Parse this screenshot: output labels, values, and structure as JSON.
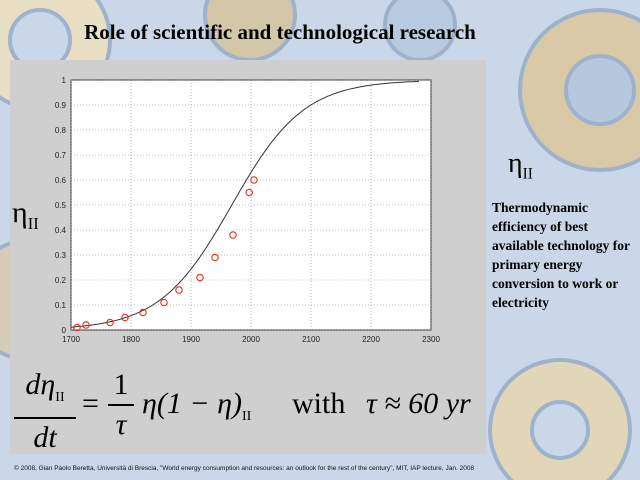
{
  "slide": {
    "title": "Role of scientific and technological research",
    "eta_symbol": "η",
    "eta_subscript": "II",
    "description": "Thermodynamic efficiency of best available technology for primary energy conversion to work or electricity",
    "footer": "© 2008, Gian Paolo Beretta, Università di Brescia, \"World energy consumption and resources: an outlook for the rest of the century\", MIT, IAP lecture, Jan. 2008"
  },
  "formula": {
    "lhs_num": "dη",
    "lhs_den": "dt",
    "equals": "=",
    "coef_num": "1",
    "coef_den": "τ",
    "rhs": "η(1 − η)",
    "with": "with",
    "tau_expr": "τ ≈ 60 yr",
    "subscript": "II"
  },
  "colors": {
    "panel": "#cfcfcf",
    "plot_bg": "#ffffff",
    "curve": "#333333",
    "marker": "#e03020",
    "background": "#c9d7e8"
  },
  "chart_data": {
    "type": "scatter",
    "x_ticks": [
      "1700",
      "1800",
      "1900",
      "2000",
      "2100",
      "2200",
      "2300"
    ],
    "y_ticks": [
      "0",
      "0.1",
      "0.2",
      "0.3",
      "0.4",
      "0.5",
      "0.6",
      "0.7",
      "0.8",
      "0.9",
      "1"
    ],
    "xlim": [
      1700,
      2300
    ],
    "ylim": [
      0,
      1
    ],
    "grid": true,
    "series": [
      {
        "x": [
          1710,
          1725,
          1765,
          1790,
          1820,
          1855,
          1880,
          1915,
          1940,
          1970,
          1997,
          2005
        ],
        "y": [
          0.01,
          0.02,
          0.03,
          0.05,
          0.07,
          0.11,
          0.16,
          0.21,
          0.29,
          0.38,
          0.55,
          0.6
        ]
      }
    ],
    "curve": {
      "type": "logistic",
      "midpoint": 1968,
      "tau": 60,
      "x_start": 1700,
      "x_end": 2280
    }
  }
}
